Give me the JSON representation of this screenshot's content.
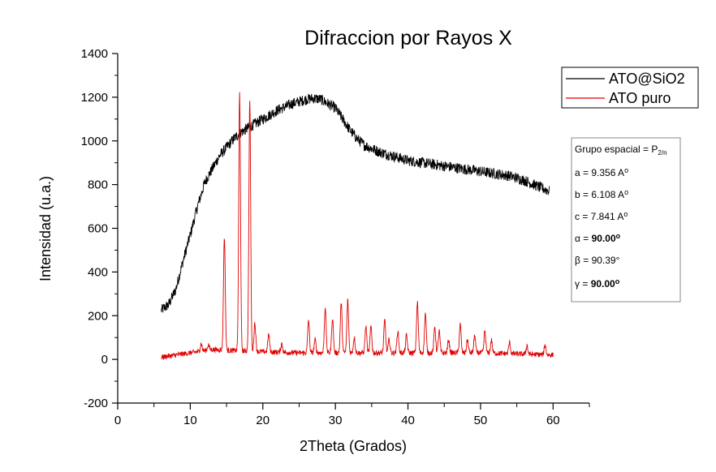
{
  "chart_data": {
    "type": "line",
    "title": "Difraccion por Rayos X",
    "xlabel": "2Theta (Grados)",
    "ylabel": "Intensidad (u.a.)",
    "xlim": [
      0,
      65
    ],
    "ylim": [
      -200,
      1400
    ],
    "x_ticks": [
      0,
      10,
      20,
      30,
      40,
      50,
      60
    ],
    "y_ticks": [
      -200,
      0,
      200,
      400,
      600,
      800,
      1000,
      1200,
      1400
    ],
    "legend_position": "top-right",
    "series": [
      {
        "name": "ATO@SiO2",
        "color": "#000000",
        "noise": 25,
        "points": [
          [
            6,
            225
          ],
          [
            7,
            250
          ],
          [
            8,
            320
          ],
          [
            9,
            450
          ],
          [
            10,
            570
          ],
          [
            11,
            700
          ],
          [
            12,
            810
          ],
          [
            13,
            870
          ],
          [
            14,
            930
          ],
          [
            15,
            970
          ],
          [
            16,
            1010
          ],
          [
            17,
            1040
          ],
          [
            18,
            1060
          ],
          [
            20,
            1100
          ],
          [
            22,
            1140
          ],
          [
            24,
            1170
          ],
          [
            26,
            1190
          ],
          [
            27,
            1195
          ],
          [
            28,
            1190
          ],
          [
            30,
            1150
          ],
          [
            31,
            1100
          ],
          [
            32,
            1050
          ],
          [
            33,
            1010
          ],
          [
            34,
            980
          ],
          [
            36,
            950
          ],
          [
            38,
            930
          ],
          [
            40,
            910
          ],
          [
            42,
            900
          ],
          [
            44,
            890
          ],
          [
            46,
            880
          ],
          [
            48,
            870
          ],
          [
            50,
            860
          ],
          [
            52,
            850
          ],
          [
            54,
            840
          ],
          [
            56,
            820
          ],
          [
            58,
            790
          ],
          [
            59.5,
            770
          ]
        ]
      },
      {
        "name": "ATO puro",
        "color": "#e00000",
        "noise": 12,
        "baseline": [
          [
            6,
            10
          ],
          [
            10,
            30
          ],
          [
            13,
            45
          ],
          [
            16,
            40
          ],
          [
            20,
            35
          ],
          [
            25,
            30
          ],
          [
            30,
            30
          ],
          [
            40,
            30
          ],
          [
            50,
            30
          ],
          [
            60,
            20
          ]
        ],
        "peaks": [
          [
            11.5,
            35
          ],
          [
            12.5,
            25
          ],
          [
            14.7,
            520
          ],
          [
            16.8,
            1180
          ],
          [
            18.2,
            1150
          ],
          [
            18.9,
            130
          ],
          [
            20.8,
            80
          ],
          [
            22.6,
            40
          ],
          [
            26.3,
            150
          ],
          [
            27.2,
            60
          ],
          [
            28.6,
            210
          ],
          [
            29.6,
            160
          ],
          [
            30.8,
            230
          ],
          [
            31.7,
            240
          ],
          [
            32.6,
            70
          ],
          [
            34.2,
            120
          ],
          [
            34.9,
            120
          ],
          [
            36.8,
            150
          ],
          [
            37.4,
            60
          ],
          [
            38.6,
            100
          ],
          [
            39.8,
            80
          ],
          [
            41.3,
            230
          ],
          [
            42.4,
            180
          ],
          [
            43.7,
            120
          ],
          [
            44.3,
            100
          ],
          [
            45.6,
            60
          ],
          [
            47.2,
            130
          ],
          [
            48.2,
            60
          ],
          [
            49.2,
            80
          ],
          [
            50.6,
            100
          ],
          [
            51.5,
            60
          ],
          [
            54,
            50
          ],
          [
            56.4,
            40
          ],
          [
            58.9,
            45
          ]
        ]
      }
    ],
    "info_box": {
      "lines": [
        {
          "label": "Grupo espacial = P",
          "sub": "2/n"
        },
        {
          "label": "a = 9.356 A",
          "sup": "o"
        },
        {
          "label": "b = 6.108 A",
          "sup": "o"
        },
        {
          "label": "c = 7.841 A",
          "sup": "o"
        },
        {
          "label": "α = ",
          "value": "90.00",
          "sup": "o",
          "bold_value": true
        },
        {
          "label": "β = 90.39°"
        },
        {
          "label": "γ = ",
          "value": "90.00",
          "sup": "o",
          "bold_value": true
        }
      ]
    }
  }
}
